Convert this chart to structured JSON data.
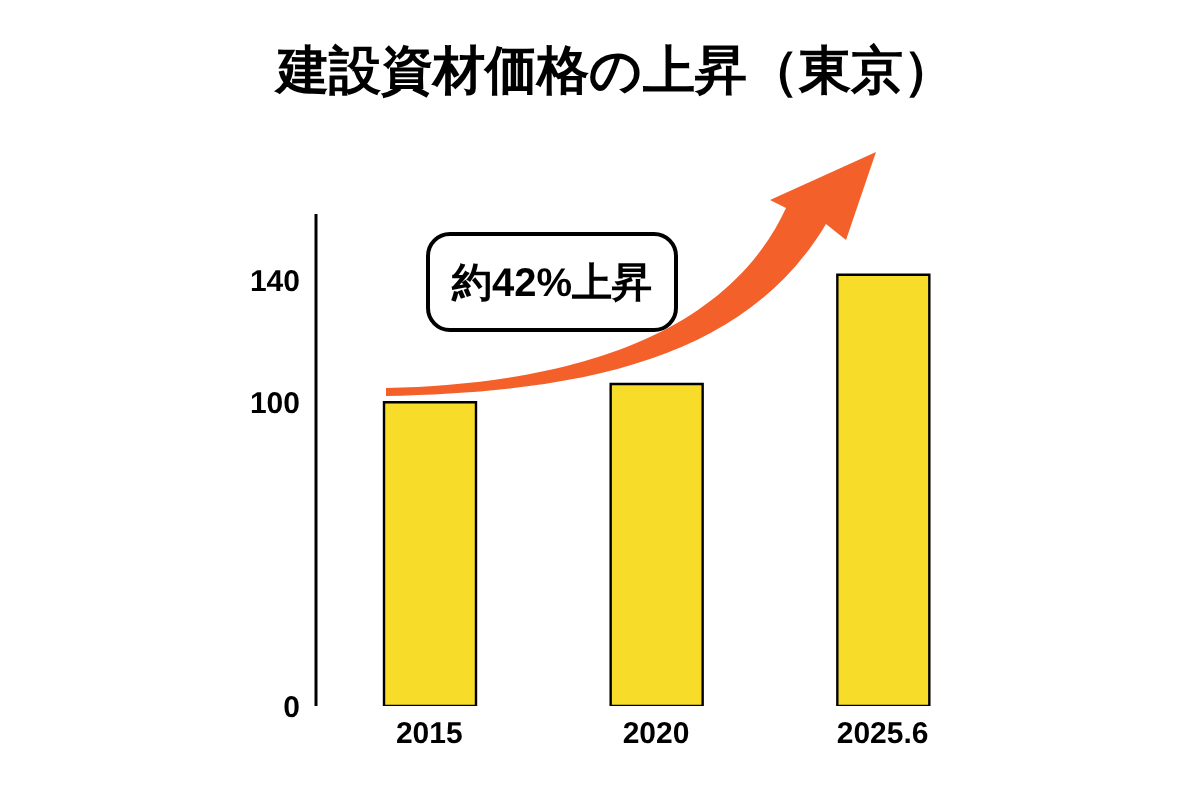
{
  "chart_data": {
    "type": "bar",
    "title": "建設資材価格の上昇（東京）",
    "categories": [
      "2015",
      "2020",
      "2025.6"
    ],
    "values": [
      100,
      106,
      142
    ],
    "color": "#f7dc2a",
    "ylim": [
      0,
      162
    ],
    "yticks": [
      0,
      100,
      140
    ],
    "annotations": [
      "約42%上昇"
    ]
  }
}
